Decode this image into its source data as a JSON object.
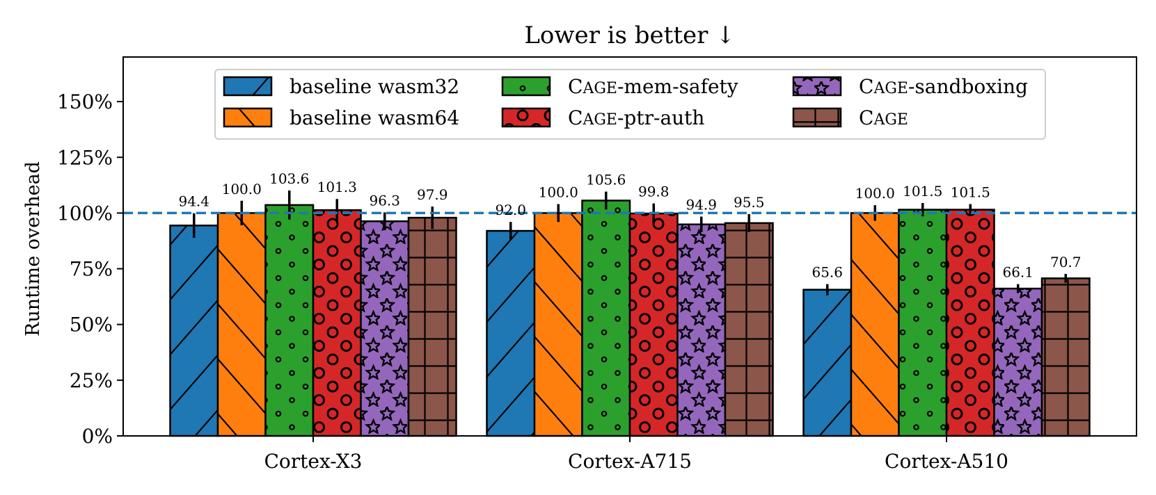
{
  "chart_data": {
    "type": "bar",
    "title": "Lower is better ↓",
    "xlabel": "",
    "ylabel": "Runtime overhead",
    "ylim": [
      0,
      170
    ],
    "yticks": [
      0,
      25,
      50,
      75,
      100,
      125,
      150
    ],
    "ytick_labels": [
      "0%",
      "25%",
      "50%",
      "75%",
      "100%",
      "125%",
      "150%"
    ],
    "reference_line": 100,
    "categories": [
      "Cortex-X3",
      "Cortex-A715",
      "Cortex-A510"
    ],
    "series": [
      {
        "name": "baseline wasm32",
        "values": [
          94.4,
          92.0,
          65.6
        ],
        "errors": [
          5.5,
          4.0,
          2.5
        ],
        "color": "#1f77b4",
        "hatch": "slash"
      },
      {
        "name": "baseline wasm64",
        "values": [
          100.0,
          100.0,
          100.0
        ],
        "errors": [
          5.5,
          4.0,
          3.5
        ],
        "color": "#ff7f0e",
        "hatch": "backslash"
      },
      {
        "name": "CAGE-mem-safety",
        "values": [
          103.6,
          105.6,
          101.5
        ],
        "errors": [
          6.5,
          4.0,
          3.0
        ],
        "color": "#2ca02c",
        "hatch": "small-circles"
      },
      {
        "name": "CAGE-ptr-auth",
        "values": [
          101.3,
          99.8,
          101.5
        ],
        "errors": [
          5.0,
          4.5,
          2.5
        ],
        "color": "#d62728",
        "hatch": "circles"
      },
      {
        "name": "CAGE-sandboxing",
        "values": [
          96.3,
          94.9,
          66.1
        ],
        "errors": [
          4.0,
          3.5,
          2.0
        ],
        "color": "#9467bd",
        "hatch": "stars"
      },
      {
        "name": "CAGE",
        "values": [
          97.9,
          95.5,
          70.7
        ],
        "errors": [
          5.0,
          4.0,
          2.0
        ],
        "color": "#8c564b",
        "hatch": "grid"
      }
    ],
    "legend": {
      "position": "top-center",
      "columns": 3,
      "entries": [
        {
          "prefix": "",
          "big": "",
          "small": "",
          "rest": "baseline wasm32"
        },
        {
          "prefix": "",
          "big": "",
          "small": "",
          "rest": "baseline wasm64"
        },
        {
          "prefix": "",
          "big": "C",
          "small": "AGE",
          "rest": "-mem-safety"
        },
        {
          "prefix": "",
          "big": "C",
          "small": "AGE",
          "rest": "-ptr-auth"
        },
        {
          "prefix": "",
          "big": "C",
          "small": "AGE",
          "rest": "-sandboxing"
        },
        {
          "prefix": "",
          "big": "C",
          "small": "AGE",
          "rest": ""
        }
      ]
    },
    "grid": false
  }
}
